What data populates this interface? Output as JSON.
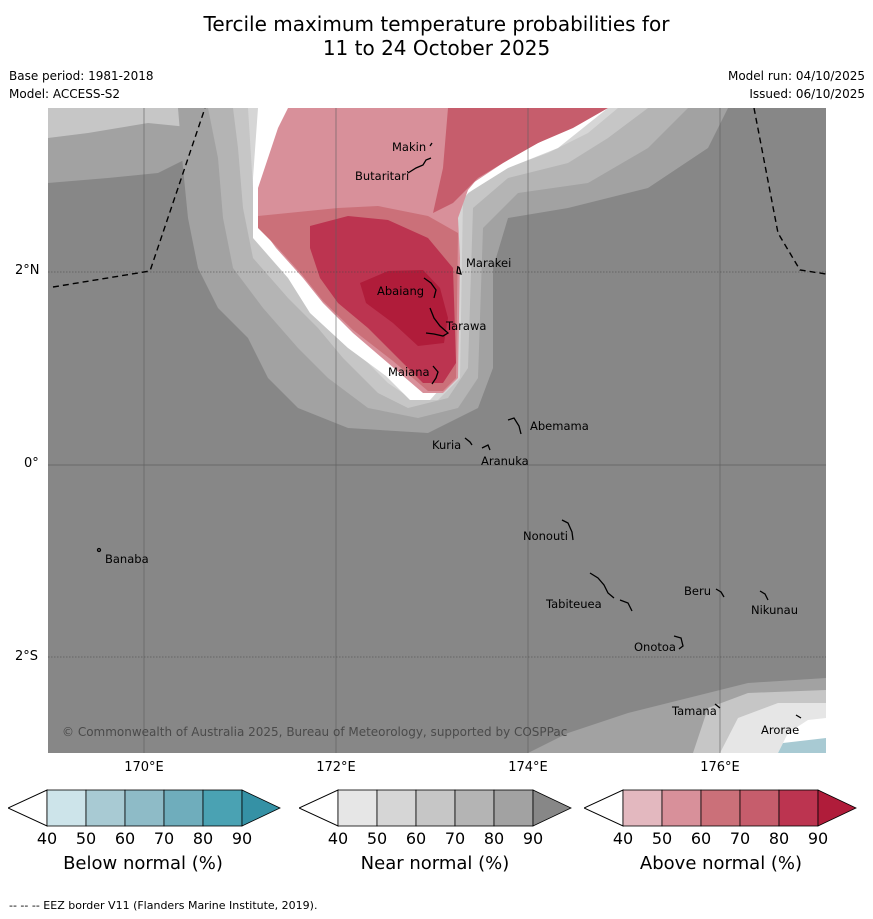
{
  "title_line1": "Tercile maximum temperature probabilities for",
  "title_line2": "11 to 24 October 2025",
  "base_period": "Base period: 1981-2018",
  "model": "Model: ACCESS-S2",
  "model_run": "Model run: 04/10/2025",
  "issued": "Issued: 06/10/2025",
  "lat_labels": [
    "2°N",
    "0°",
    "2°S"
  ],
  "lon_labels": [
    "170°E",
    "172°E",
    "174°E",
    "176°E"
  ],
  "places": [
    "Makin",
    "Butaritari",
    "Marakei",
    "Abaiang",
    "Tarawa",
    "Maiana",
    "Abemama",
    "Kuria",
    "Aranuka",
    "Nonouti",
    "Banaba",
    "Tabiteuea",
    "Beru",
    "Nikunau",
    "Onotoa",
    "Tamana",
    "Arorae"
  ],
  "copyright": "© Commonwealth of Australia 2025, Bureau of Meteorology, supported by COSPPac",
  "colorbars": [
    {
      "title": "Below normal (%)",
      "ticks": [
        "40",
        "50",
        "60",
        "70",
        "80",
        "90"
      ],
      "colors": [
        "#cde4ea",
        "#a8cad3",
        "#8ebbc7",
        "#6fadbc",
        "#4aa2b3",
        "#3591a5"
      ]
    },
    {
      "title": "Near normal (%)",
      "ticks": [
        "40",
        "50",
        "60",
        "70",
        "80",
        "90"
      ],
      "colors": [
        "#e6e6e6",
        "#d6d6d6",
        "#c6c6c6",
        "#b4b4b4",
        "#a2a2a2",
        "#878787"
      ]
    },
    {
      "title": "Above normal (%)",
      "ticks": [
        "40",
        "50",
        "60",
        "70",
        "80",
        "90"
      ],
      "colors": [
        "#e3b8bf",
        "#d8909a",
        "#cb7079",
        "#c65d6c",
        "#bc3450",
        "#b01c3a"
      ]
    }
  ],
  "footer": "--  --  -- EEZ border V11 (Flanders Marine Institute, 2019)."
}
